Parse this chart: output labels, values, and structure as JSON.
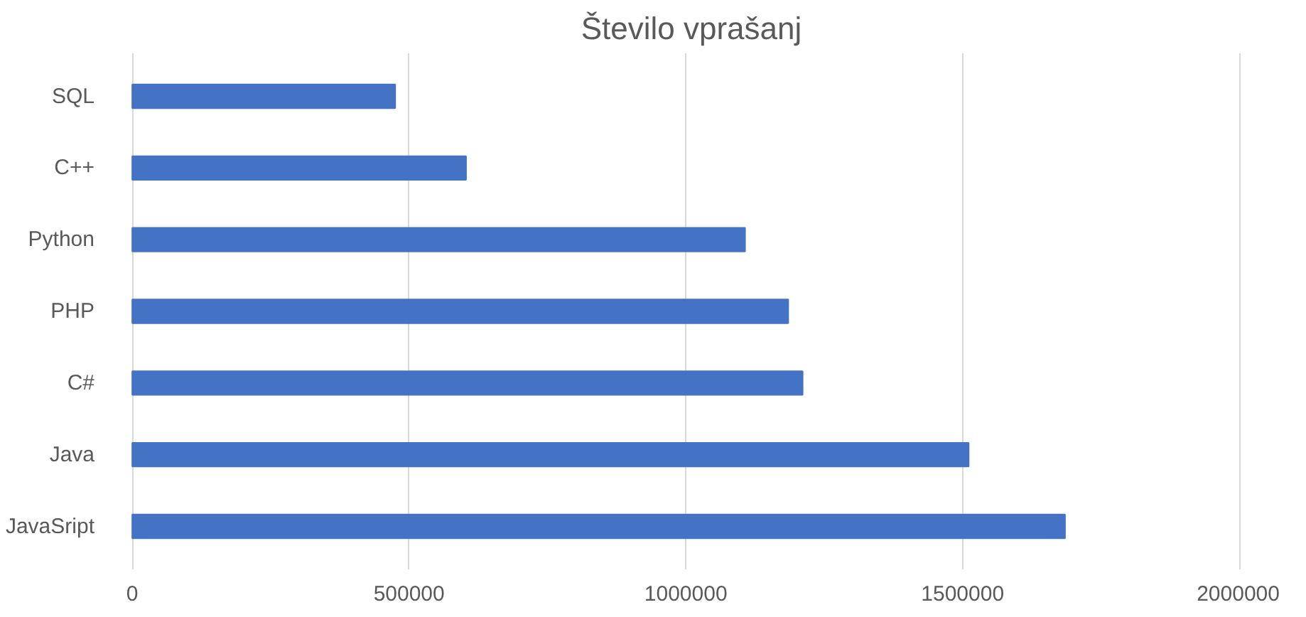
{
  "chart_data": {
    "type": "bar",
    "orientation": "horizontal",
    "title": "Število vprašanj",
    "categories": [
      "SQL",
      "C++",
      "Python",
      "PHP",
      "C#",
      "Java",
      "JavaSript"
    ],
    "values": [
      475000,
      603000,
      1107000,
      1185000,
      1211000,
      1511000,
      1685000
    ],
    "color": "#4472c4",
    "xlim": [
      0,
      2000000
    ],
    "xticks": [
      0,
      500000,
      1000000,
      1500000,
      2000000
    ],
    "grid": "x"
  }
}
